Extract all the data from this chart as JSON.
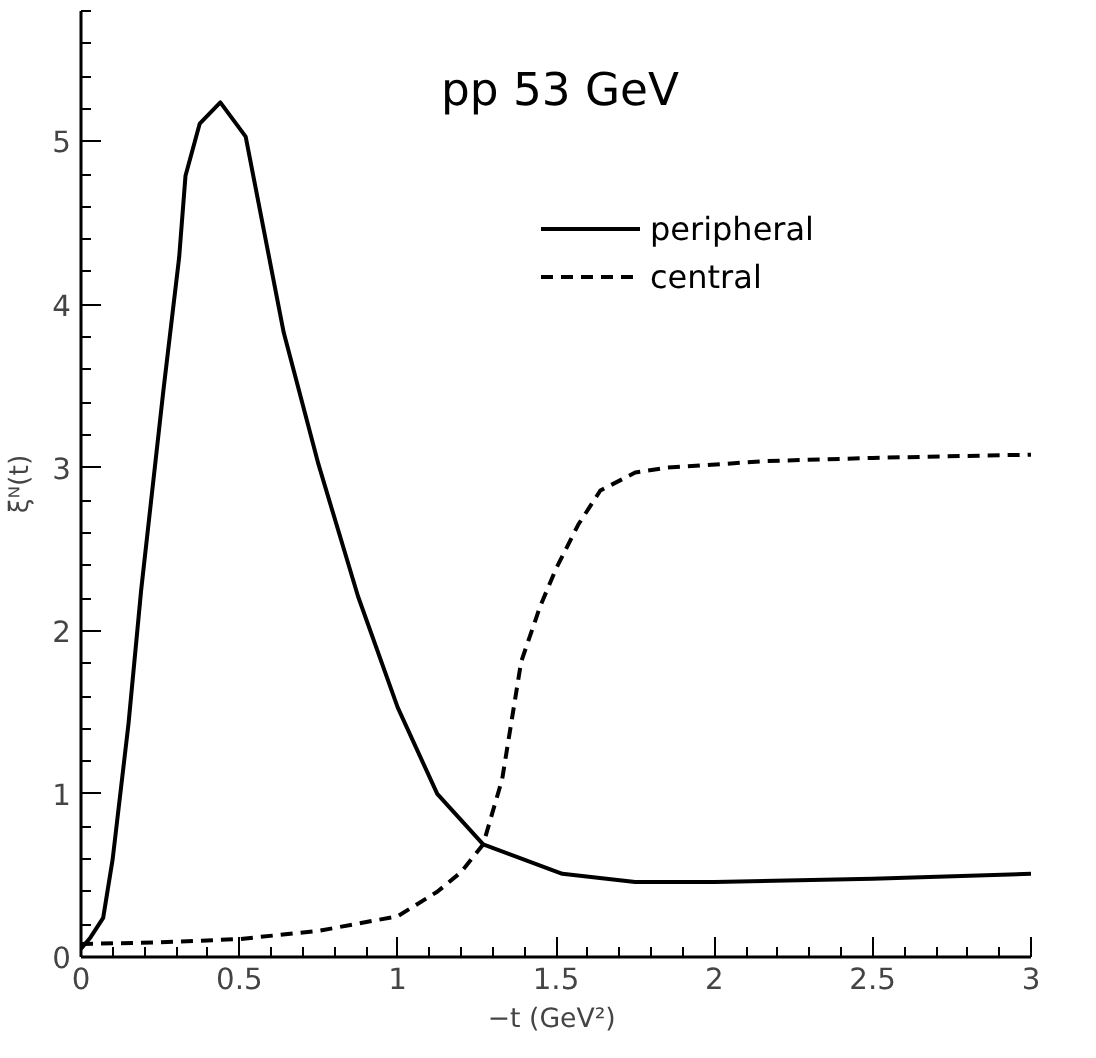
{
  "chart_data": {
    "type": "line",
    "xlabel": "−t  (GeV²)",
    "ylabel": "ξᴺ(t)",
    "xlim": [
      0,
      3
    ],
    "ylim": [
      0,
      5.8
    ],
    "xticks": [
      0,
      0.5,
      1,
      1.5,
      2,
      2.5,
      3
    ],
    "yticks": [
      0,
      1,
      2,
      3,
      4,
      5
    ],
    "grid": false,
    "legend": "top right",
    "annotations": [
      "pp 53 GeV"
    ],
    "series": [
      {
        "name": "peripheral",
        "color": "#000000",
        "line_style": "solid",
        "x": [
          0,
          0.03,
          0.07,
          0.1,
          0.15,
          0.19,
          0.26,
          0.31,
          0.33,
          0.375,
          0.44,
          0.52,
          0.64,
          0.75,
          0.875,
          1.0,
          1.125,
          1.27,
          1.52,
          1.75,
          2.0,
          2.5,
          3.0
        ],
        "values": [
          0.05,
          0.12,
          0.24,
          0.6,
          1.43,
          2.25,
          3.47,
          4.29,
          4.79,
          5.11,
          5.24,
          5.03,
          3.83,
          3.02,
          2.21,
          1.53,
          1.0,
          0.69,
          0.51,
          0.46,
          0.46,
          0.48,
          0.51
        ]
      },
      {
        "name": "central",
        "color": "#000000",
        "line_style": "dashed",
        "x": [
          0,
          0.25,
          0.5,
          0.75,
          1.0,
          1.125,
          1.2,
          1.27,
          1.33,
          1.39,
          1.45,
          1.5,
          1.57,
          1.64,
          1.75,
          1.85,
          2.16,
          2.5,
          3.0
        ],
        "values": [
          0.08,
          0.09,
          0.11,
          0.16,
          0.25,
          0.4,
          0.52,
          0.69,
          1.09,
          1.81,
          2.15,
          2.38,
          2.65,
          2.86,
          2.97,
          3.0,
          3.04,
          3.06,
          3.08
        ]
      }
    ]
  }
}
